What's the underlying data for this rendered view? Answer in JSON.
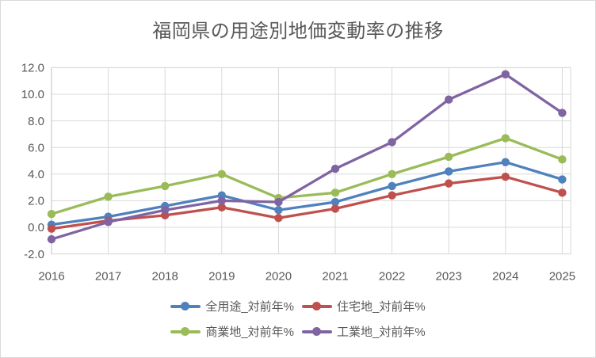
{
  "chart_data": {
    "type": "line",
    "title": "福岡県の用途別地価変動率の推移",
    "categories": [
      "2016",
      "2017",
      "2018",
      "2019",
      "2020",
      "2021",
      "2022",
      "2023",
      "2024",
      "2025"
    ],
    "series": [
      {
        "id": "all-use",
        "name": "全用途_対前年%",
        "color": "#4F81BD",
        "values": [
          0.2,
          0.8,
          1.6,
          2.4,
          1.3,
          1.9,
          3.1,
          4.2,
          4.9,
          3.6
        ]
      },
      {
        "id": "residential",
        "name": "住宅地_対前年%",
        "color": "#C0504D",
        "values": [
          -0.1,
          0.5,
          0.9,
          1.5,
          0.7,
          1.4,
          2.4,
          3.3,
          3.8,
          2.6
        ]
      },
      {
        "id": "commercial",
        "name": "商業地_対前年%",
        "color": "#9BBB59",
        "values": [
          1.0,
          2.3,
          3.1,
          4.0,
          2.2,
          2.6,
          4.0,
          5.3,
          6.7,
          5.1
        ]
      },
      {
        "id": "industrial",
        "name": "工業地_対前年%",
        "color": "#8064A2",
        "values": [
          -0.9,
          0.4,
          1.3,
          2.0,
          1.9,
          4.4,
          6.4,
          9.6,
          11.5,
          8.6
        ]
      }
    ],
    "xlabel": "",
    "ylabel": "",
    "ylim": [
      -2,
      12
    ],
    "yticks": [
      -2,
      0,
      2,
      4,
      6,
      8,
      10,
      12
    ],
    "ytick_labels": [
      "-2.0",
      "0.0",
      "2.0",
      "4.0",
      "6.0",
      "8.0",
      "10.0",
      "12.0"
    ],
    "grid": true,
    "legend_position": "bottom",
    "marker": "circle",
    "colors": {
      "title_text": "#595959",
      "axis_text": "#595959",
      "gridline": "#D9D9D9",
      "axis_line": "#BFBFBF",
      "background": "#FFFFFF",
      "border": "#D9D9D9"
    }
  }
}
